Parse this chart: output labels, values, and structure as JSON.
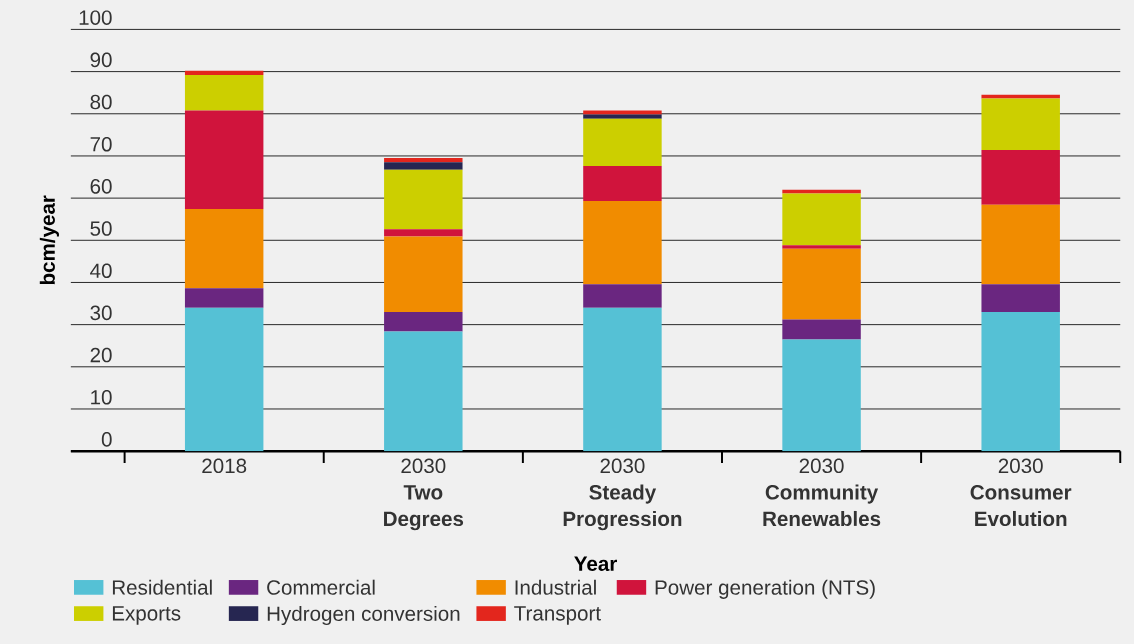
{
  "chart_data": {
    "type": "bar",
    "stacked": true,
    "xlabel": "Year",
    "ylabel": "bcm/year",
    "categories": [
      "2018",
      "2030 **Two Degrees**",
      "2030 **Steady Progression**",
      "2030 **Community Renewables**",
      "2030 **Consumer Evolution**"
    ],
    "ylim": [
      0,
      100
    ],
    "yticks": [
      0,
      10,
      20,
      30,
      40,
      50,
      60,
      70,
      80,
      90,
      100
    ],
    "grid": "y",
    "legend": "bottom",
    "series": [
      {
        "name": "Residential",
        "color": "#55c1d5",
        "values": [
          34.0,
          28.4,
          34.0,
          26.5,
          33.0
        ]
      },
      {
        "name": "Commercial",
        "color": "#6a2680",
        "values": [
          4.6,
          4.6,
          5.6,
          4.7,
          6.6
        ]
      },
      {
        "name": "Industrial",
        "color": "#f18c00",
        "values": [
          18.8,
          17.9,
          19.7,
          16.8,
          18.8
        ]
      },
      {
        "name": "Power generation (NTS)",
        "color": "#d0143c",
        "values": [
          23.4,
          1.7,
          8.3,
          0.8,
          13.0
        ]
      },
      {
        "name": "Exports",
        "color": "#cccf00",
        "values": [
          8.4,
          14.1,
          11.2,
          12.3,
          12.2
        ]
      },
      {
        "name": "Hydrogen conversion",
        "color": "#262651",
        "values": [
          0,
          1.8,
          1.0,
          0,
          0
        ]
      },
      {
        "name": "Transport",
        "color": "#e3261d",
        "values": [
          1.0,
          1.0,
          1.0,
          0.9,
          0.9
        ]
      }
    ]
  }
}
